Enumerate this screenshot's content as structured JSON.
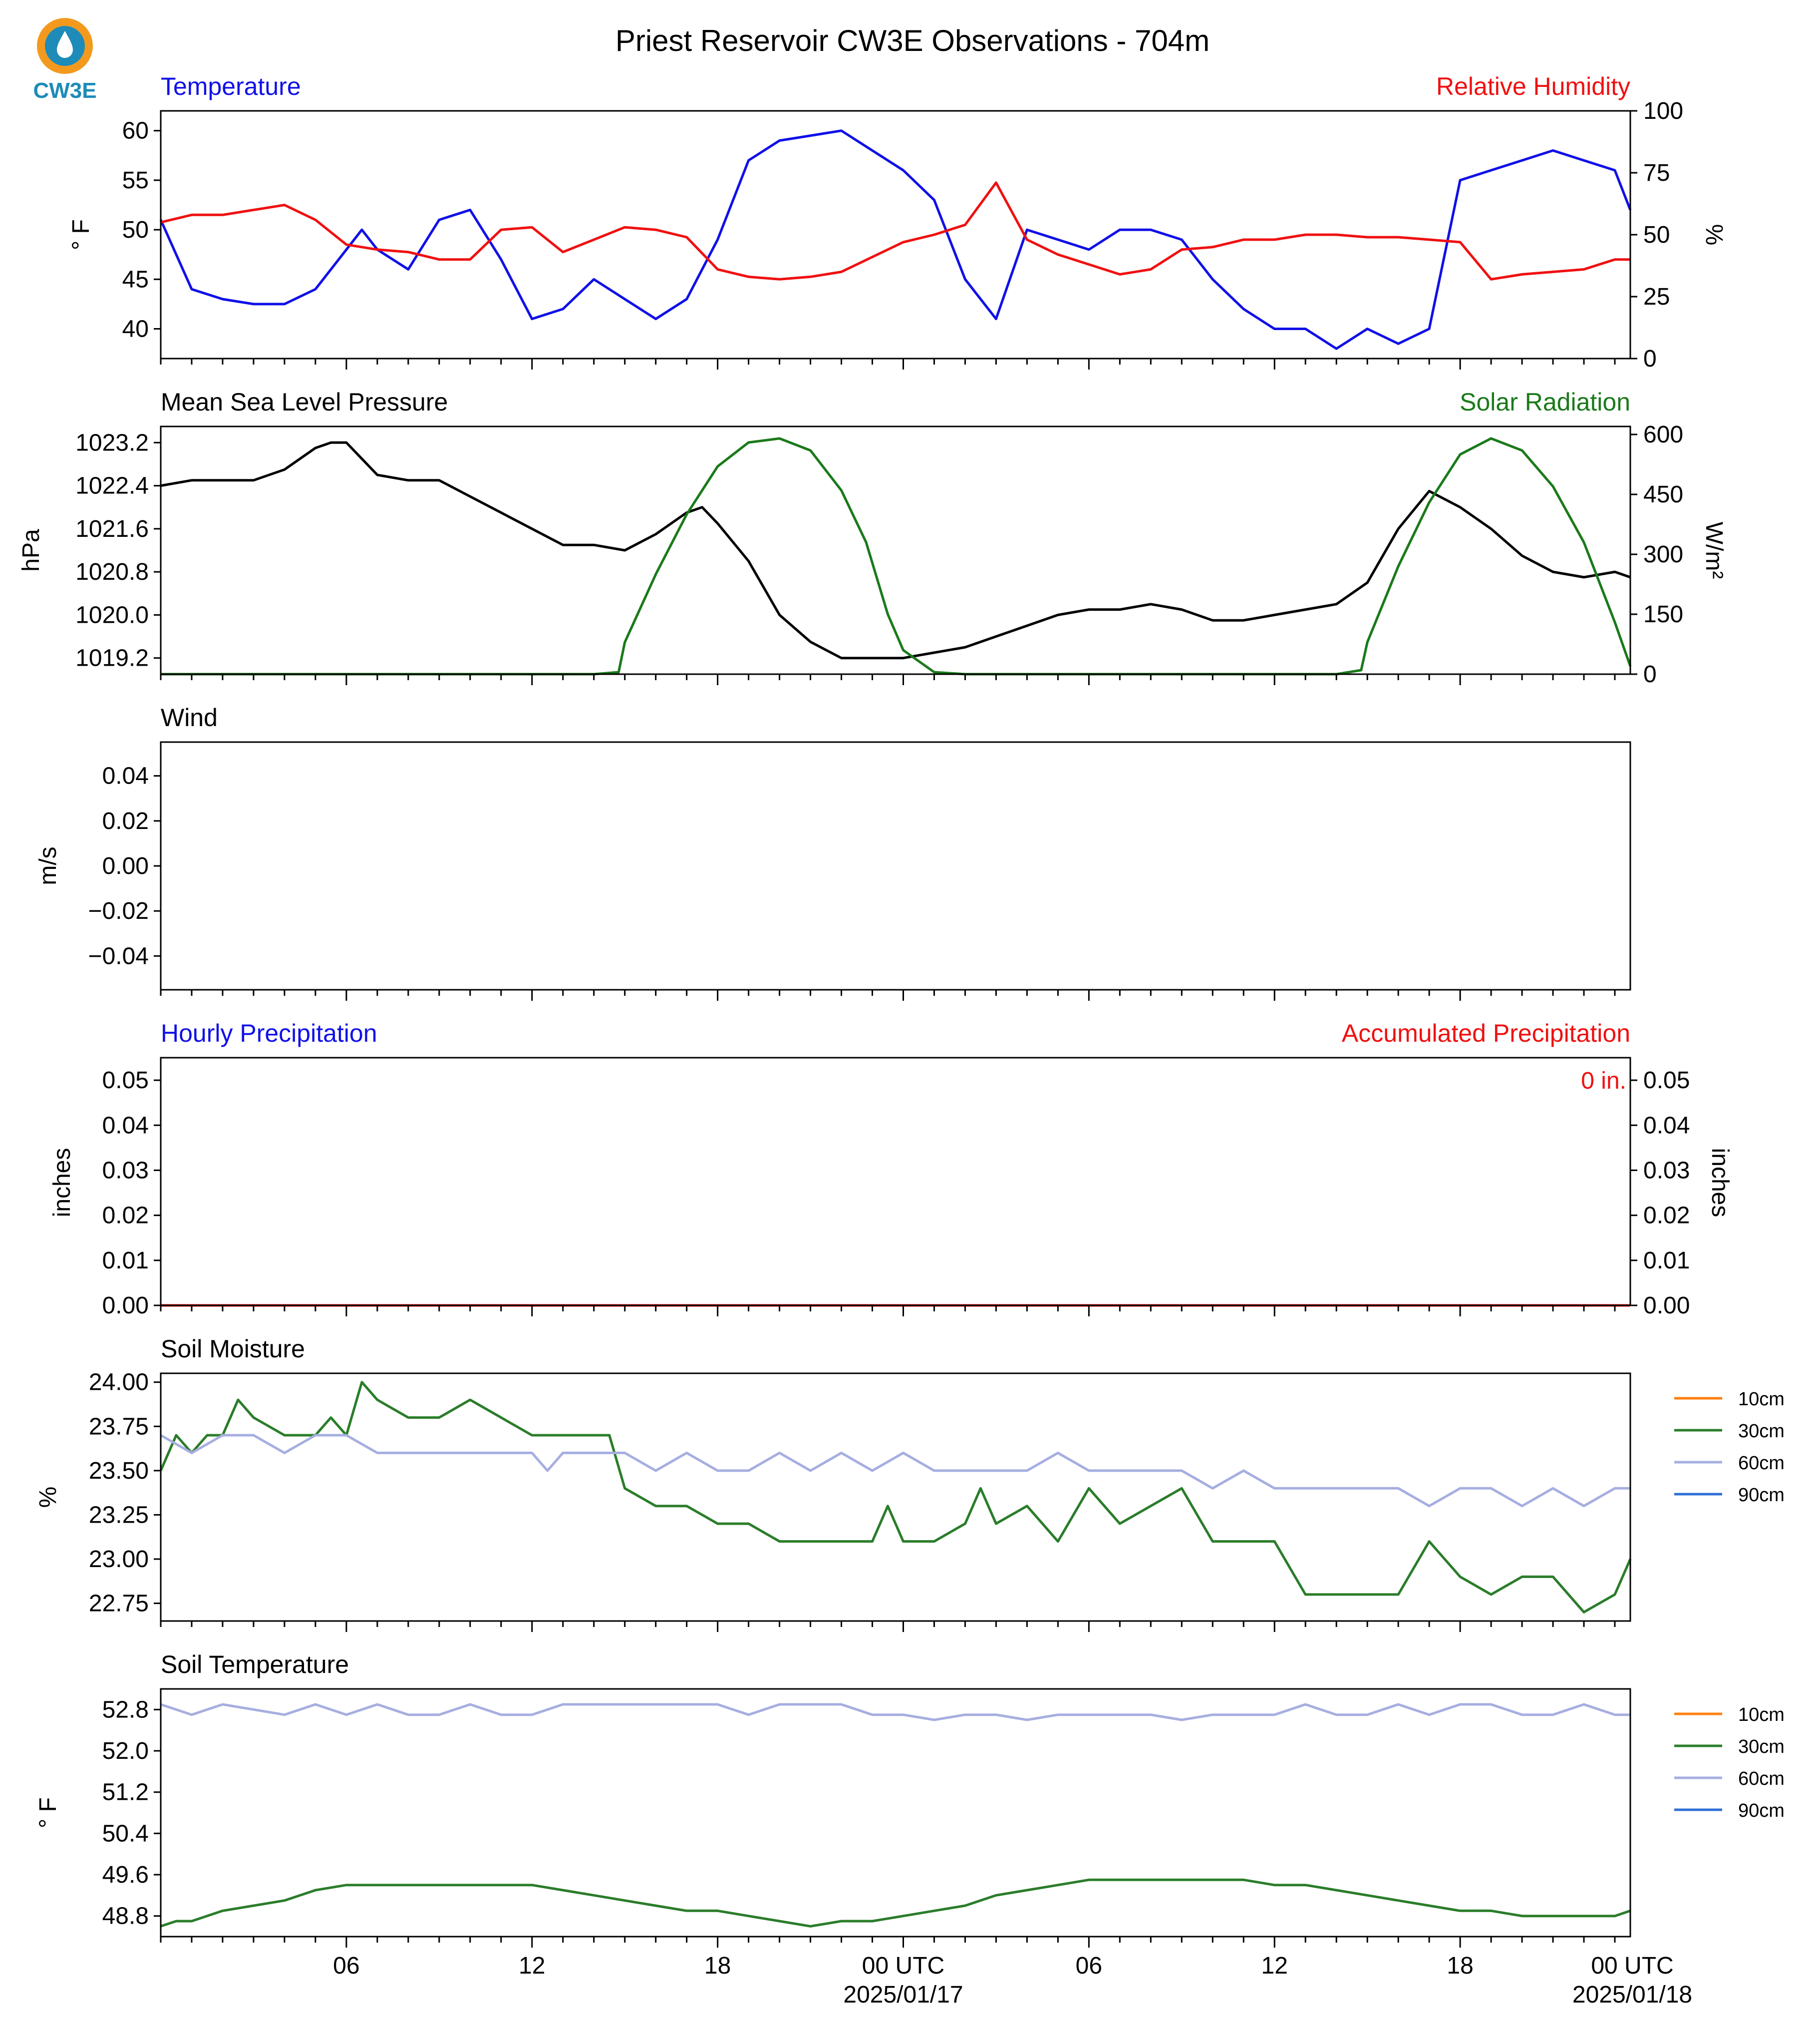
{
  "title": "Priest Reservoir CW3E Observations - 704m",
  "logo_text": "CW3E",
  "colors": {
    "blue": "#1010e8",
    "red": "#f01010",
    "green": "#1a7a1a",
    "black": "#000000",
    "orange": "#ff7f0e",
    "soilgreen": "#2a7d2a",
    "lavender": "#a6aee0",
    "soilblue": "#2f6fd6"
  },
  "x_axis": {
    "start_hours_before_first_00utc": 24,
    "tick_labels": [
      "06",
      "12",
      "18",
      "00 UTC",
      "06",
      "12",
      "18",
      "00 UTC"
    ],
    "date_labels": [
      "2025/01/17",
      "2025/01/18"
    ]
  },
  "panels": {
    "temp_rh": {
      "left_title": "Temperature",
      "right_title": "Relative Humidity",
      "left_ylabel": "° F",
      "right_ylabel": "%"
    },
    "pressure_solar": {
      "left_title": "Mean Sea Level Pressure",
      "right_title": "Solar Radiation",
      "left_ylabel": "hPa",
      "right_ylabel": "W/m²"
    },
    "wind": {
      "left_title": "Wind",
      "left_ylabel": "m/s"
    },
    "precip": {
      "left_title": "Hourly Precipitation",
      "right_title": "Accumulated Precipitation",
      "left_ylabel": "inches",
      "right_ylabel": "inches",
      "total_label": "0 in."
    },
    "soil_moisture": {
      "left_title": "Soil Moisture",
      "left_ylabel": "%"
    },
    "soil_temperature": {
      "left_title": "Soil Temperature",
      "left_ylabel": "° F"
    }
  },
  "legend": [
    "10cm",
    "30cm",
    "60cm",
    "90cm"
  ],
  "chart_data": [
    {
      "type": "line",
      "title": "Temperature / Relative Humidity",
      "x_unit": "hours since 2025-01-16 00 UTC",
      "ylim_left": [
        37,
        62
      ],
      "yticks_left": [
        40,
        45,
        50,
        55,
        60
      ],
      "ylim_right": [
        0,
        100
      ],
      "yticks_right": [
        0,
        25,
        50,
        75,
        100
      ],
      "series": [
        {
          "name": "Temperature",
          "axis": "left",
          "color": "blue",
          "x": [
            0,
            1,
            2,
            3,
            4,
            5,
            6,
            6.5,
            7,
            8,
            9,
            10,
            11,
            12,
            13,
            14,
            15,
            16,
            17,
            18,
            19,
            20,
            21,
            22,
            23,
            24,
            25,
            26,
            27,
            28,
            29,
            30,
            31,
            32,
            33,
            34,
            35,
            36,
            37,
            38,
            39,
            40,
            41,
            42,
            43,
            44,
            45,
            46,
            47,
            47.5
          ],
          "y": [
            51,
            44,
            43,
            42.5,
            42.5,
            44,
            48,
            50,
            48,
            46,
            51,
            52,
            47,
            41,
            42,
            45,
            43,
            41,
            43,
            49,
            57,
            59,
            59.5,
            60,
            58,
            56,
            53,
            45,
            41,
            50,
            49,
            48,
            50,
            50,
            49,
            45,
            42,
            40,
            40,
            38,
            40,
            38.5,
            40,
            55,
            56,
            57,
            58,
            57,
            56,
            52
          ]
        },
        {
          "name": "Relative Humidity",
          "axis": "right",
          "color": "red",
          "x": [
            0,
            1,
            2,
            3,
            4,
            5,
            6,
            7,
            8,
            9,
            10,
            11,
            12,
            13,
            14,
            15,
            16,
            17,
            18,
            19,
            20,
            21,
            22,
            23,
            24,
            25,
            26,
            27,
            28,
            29,
            30,
            31,
            32,
            33,
            34,
            35,
            36,
            37,
            38,
            39,
            40,
            41,
            42,
            43,
            44,
            45,
            46,
            47,
            47.5
          ],
          "y": [
            55,
            58,
            58,
            60,
            62,
            56,
            46,
            44,
            43,
            40,
            40,
            52,
            53,
            43,
            48,
            53,
            52,
            49,
            36,
            33,
            32,
            33,
            35,
            41,
            47,
            50,
            54,
            71,
            48,
            42,
            38,
            34,
            36,
            44,
            45,
            48,
            48,
            50,
            50,
            49,
            49,
            48,
            47,
            32,
            34,
            35,
            36,
            40,
            40
          ]
        }
      ]
    },
    {
      "type": "line",
      "title": "Mean Sea Level Pressure / Solar Radiation",
      "x_unit": "hours since 2025-01-16 00 UTC",
      "ylim_left": [
        1018.9,
        1023.5
      ],
      "yticks_left": [
        1019.2,
        1020.0,
        1020.8,
        1021.6,
        1022.4,
        1023.2
      ],
      "ylim_right": [
        0,
        620
      ],
      "yticks_right": [
        0,
        150,
        300,
        450,
        600
      ],
      "series": [
        {
          "name": "Mean Sea Level Pressure",
          "axis": "left",
          "color": "black",
          "x": [
            0,
            1,
            2,
            3,
            4,
            5,
            5.5,
            6,
            7,
            8,
            9,
            10,
            11,
            12,
            13,
            14,
            15,
            16,
            17,
            17.5,
            18,
            19,
            20,
            21,
            22,
            23,
            24,
            25,
            26,
            27,
            28,
            29,
            30,
            31,
            32,
            33,
            34,
            35,
            36,
            37,
            38,
            39,
            40,
            41,
            42,
            43,
            44,
            45,
            46,
            47,
            47.5
          ],
          "y": [
            1022.4,
            1022.5,
            1022.5,
            1022.5,
            1022.7,
            1023.1,
            1023.2,
            1023.2,
            1022.6,
            1022.5,
            1022.5,
            1022.2,
            1021.9,
            1021.6,
            1021.3,
            1021.3,
            1021.2,
            1021.5,
            1021.9,
            1022.0,
            1021.7,
            1021.0,
            1020.0,
            1019.5,
            1019.2,
            1019.2,
            1019.2,
            1019.3,
            1019.4,
            1019.6,
            1019.8,
            1020.0,
            1020.1,
            1020.1,
            1020.2,
            1020.1,
            1019.9,
            1019.9,
            1020.0,
            1020.1,
            1020.2,
            1020.6,
            1021.6,
            1022.3,
            1022.0,
            1021.6,
            1021.1,
            1020.8,
            1020.7,
            1020.8,
            1020.7
          ]
        },
        {
          "name": "Solar Radiation",
          "axis": "right",
          "color": "green",
          "x": [
            0,
            14,
            14.8,
            15,
            16,
            17,
            18,
            19,
            20,
            21,
            22,
            22.8,
            23.5,
            24,
            25,
            26,
            27,
            38,
            38.8,
            39,
            40,
            41,
            42,
            43,
            44,
            45,
            46,
            47,
            47.5
          ],
          "y": [
            0,
            0,
            5,
            80,
            250,
            400,
            520,
            580,
            590,
            560,
            460,
            330,
            150,
            60,
            5,
            0,
            0,
            0,
            10,
            80,
            270,
            430,
            550,
            590,
            560,
            470,
            330,
            130,
            20
          ]
        }
      ]
    },
    {
      "type": "line",
      "title": "Wind",
      "ylim": [
        -0.055,
        0.055
      ],
      "yticks": [
        -0.04,
        -0.02,
        0.0,
        0.02,
        0.04
      ],
      "series": []
    },
    {
      "type": "line",
      "title": "Hourly Precipitation / Accumulated Precipitation",
      "ylim_left": [
        0,
        0.055
      ],
      "yticks_left": [
        0.0,
        0.01,
        0.02,
        0.03,
        0.04,
        0.05
      ],
      "ylim_right": [
        0,
        0.055
      ],
      "yticks_right": [
        0.0,
        0.01,
        0.02,
        0.03,
        0.04,
        0.05
      ],
      "series": [
        {
          "name": "Hourly Precipitation",
          "axis": "left",
          "color": "blue",
          "x": [
            0,
            47.5
          ],
          "y": [
            0,
            0
          ]
        },
        {
          "name": "Accumulated Precipitation",
          "axis": "right",
          "color": "red",
          "x": [
            0,
            47.5
          ],
          "y": [
            0,
            0
          ]
        }
      ]
    },
    {
      "type": "line",
      "title": "Soil Moisture",
      "ylim": [
        22.65,
        24.05
      ],
      "yticks": [
        22.75,
        23.0,
        23.25,
        23.5,
        23.75,
        24.0
      ],
      "series": [
        {
          "name": "30cm",
          "color": "soilgreen",
          "x": [
            0,
            0.5,
            1,
            1.5,
            2,
            2.5,
            3,
            4,
            5,
            5.5,
            6,
            6.5,
            7,
            8,
            9,
            10,
            11,
            12,
            13,
            14,
            14.5,
            15,
            16,
            17,
            18,
            19,
            20,
            21,
            22,
            23,
            23.5,
            24,
            25,
            26,
            26.5,
            27,
            28,
            29,
            30,
            31,
            32,
            33,
            34,
            35,
            36,
            37,
            38,
            39,
            40,
            41,
            42,
            43,
            44,
            45,
            46,
            47,
            47.5
          ],
          "y": [
            23.5,
            23.7,
            23.6,
            23.7,
            23.7,
            23.9,
            23.8,
            23.7,
            23.7,
            23.8,
            23.7,
            24.0,
            23.9,
            23.8,
            23.8,
            23.9,
            23.8,
            23.7,
            23.7,
            23.7,
            23.7,
            23.4,
            23.3,
            23.3,
            23.2,
            23.2,
            23.1,
            23.1,
            23.1,
            23.1,
            23.3,
            23.1,
            23.1,
            23.2,
            23.4,
            23.2,
            23.3,
            23.1,
            23.4,
            23.2,
            23.3,
            23.4,
            23.1,
            23.1,
            23.1,
            22.8,
            22.8,
            22.8,
            22.8,
            23.1,
            22.9,
            22.8,
            22.9,
            22.9,
            22.7,
            22.8,
            23.0
          ]
        },
        {
          "name": "60cm",
          "color": "lavender",
          "x": [
            0,
            1,
            2,
            3,
            4,
            5,
            6,
            7,
            8,
            9,
            10,
            11,
            12,
            12.5,
            13,
            14,
            15,
            16,
            17,
            18,
            19,
            20,
            21,
            22,
            23,
            24,
            25,
            26,
            27,
            28,
            29,
            30,
            31,
            32,
            33,
            34,
            35,
            36,
            37,
            38,
            39,
            40,
            41,
            42,
            43,
            44,
            45,
            46,
            47,
            47.5
          ],
          "y": [
            23.7,
            23.6,
            23.7,
            23.7,
            23.6,
            23.7,
            23.7,
            23.6,
            23.6,
            23.6,
            23.6,
            23.6,
            23.6,
            23.5,
            23.6,
            23.6,
            23.6,
            23.5,
            23.6,
            23.5,
            23.5,
            23.6,
            23.5,
            23.6,
            23.5,
            23.6,
            23.5,
            23.5,
            23.5,
            23.5,
            23.6,
            23.5,
            23.5,
            23.5,
            23.5,
            23.4,
            23.5,
            23.4,
            23.4,
            23.4,
            23.4,
            23.4,
            23.3,
            23.4,
            23.4,
            23.3,
            23.4,
            23.3,
            23.4,
            23.4
          ]
        }
      ]
    },
    {
      "type": "line",
      "title": "Soil Temperature",
      "ylim": [
        48.4,
        53.2
      ],
      "yticks": [
        48.8,
        49.6,
        50.4,
        51.2,
        52.0,
        52.8
      ],
      "series": [
        {
          "name": "30cm",
          "color": "soilgreen",
          "x": [
            0,
            0.5,
            1,
            2,
            3,
            4,
            5,
            6,
            7,
            8,
            9,
            10,
            11,
            12,
            13,
            14,
            15,
            16,
            17,
            18,
            19,
            20,
            21,
            22,
            23,
            24,
            25,
            26,
            27,
            28,
            29,
            30,
            31,
            32,
            33,
            34,
            35,
            36,
            37,
            38,
            39,
            40,
            41,
            42,
            43,
            44,
            45,
            46,
            47,
            47.5
          ],
          "y": [
            48.6,
            48.7,
            48.7,
            48.9,
            49.0,
            49.1,
            49.3,
            49.4,
            49.4,
            49.4,
            49.4,
            49.4,
            49.4,
            49.4,
            49.3,
            49.2,
            49.1,
            49.0,
            48.9,
            48.9,
            48.8,
            48.7,
            48.6,
            48.7,
            48.7,
            48.8,
            48.9,
            49.0,
            49.2,
            49.3,
            49.4,
            49.5,
            49.5,
            49.5,
            49.5,
            49.5,
            49.5,
            49.4,
            49.4,
            49.3,
            49.2,
            49.1,
            49.0,
            48.9,
            48.9,
            48.8,
            48.8,
            48.8,
            48.8,
            48.9
          ]
        },
        {
          "name": "60cm",
          "color": "lavender",
          "x": [
            0,
            1,
            2,
            3,
            4,
            5,
            6,
            7,
            8,
            9,
            10,
            11,
            12,
            13,
            14,
            15,
            16,
            17,
            18,
            19,
            20,
            21,
            22,
            23,
            24,
            25,
            26,
            27,
            28,
            29,
            30,
            31,
            32,
            33,
            34,
            35,
            36,
            37,
            38,
            39,
            40,
            41,
            42,
            43,
            44,
            45,
            46,
            47,
            47.5
          ],
          "y": [
            52.9,
            52.7,
            52.9,
            52.8,
            52.7,
            52.9,
            52.7,
            52.9,
            52.7,
            52.7,
            52.9,
            52.7,
            52.7,
            52.9,
            52.9,
            52.9,
            52.9,
            52.9,
            52.9,
            52.7,
            52.9,
            52.9,
            52.9,
            52.7,
            52.7,
            52.6,
            52.7,
            52.7,
            52.6,
            52.7,
            52.7,
            52.7,
            52.7,
            52.6,
            52.7,
            52.7,
            52.7,
            52.9,
            52.7,
            52.7,
            52.9,
            52.7,
            52.9,
            52.9,
            52.7,
            52.7,
            52.9,
            52.7,
            52.7
          ]
        }
      ]
    }
  ]
}
